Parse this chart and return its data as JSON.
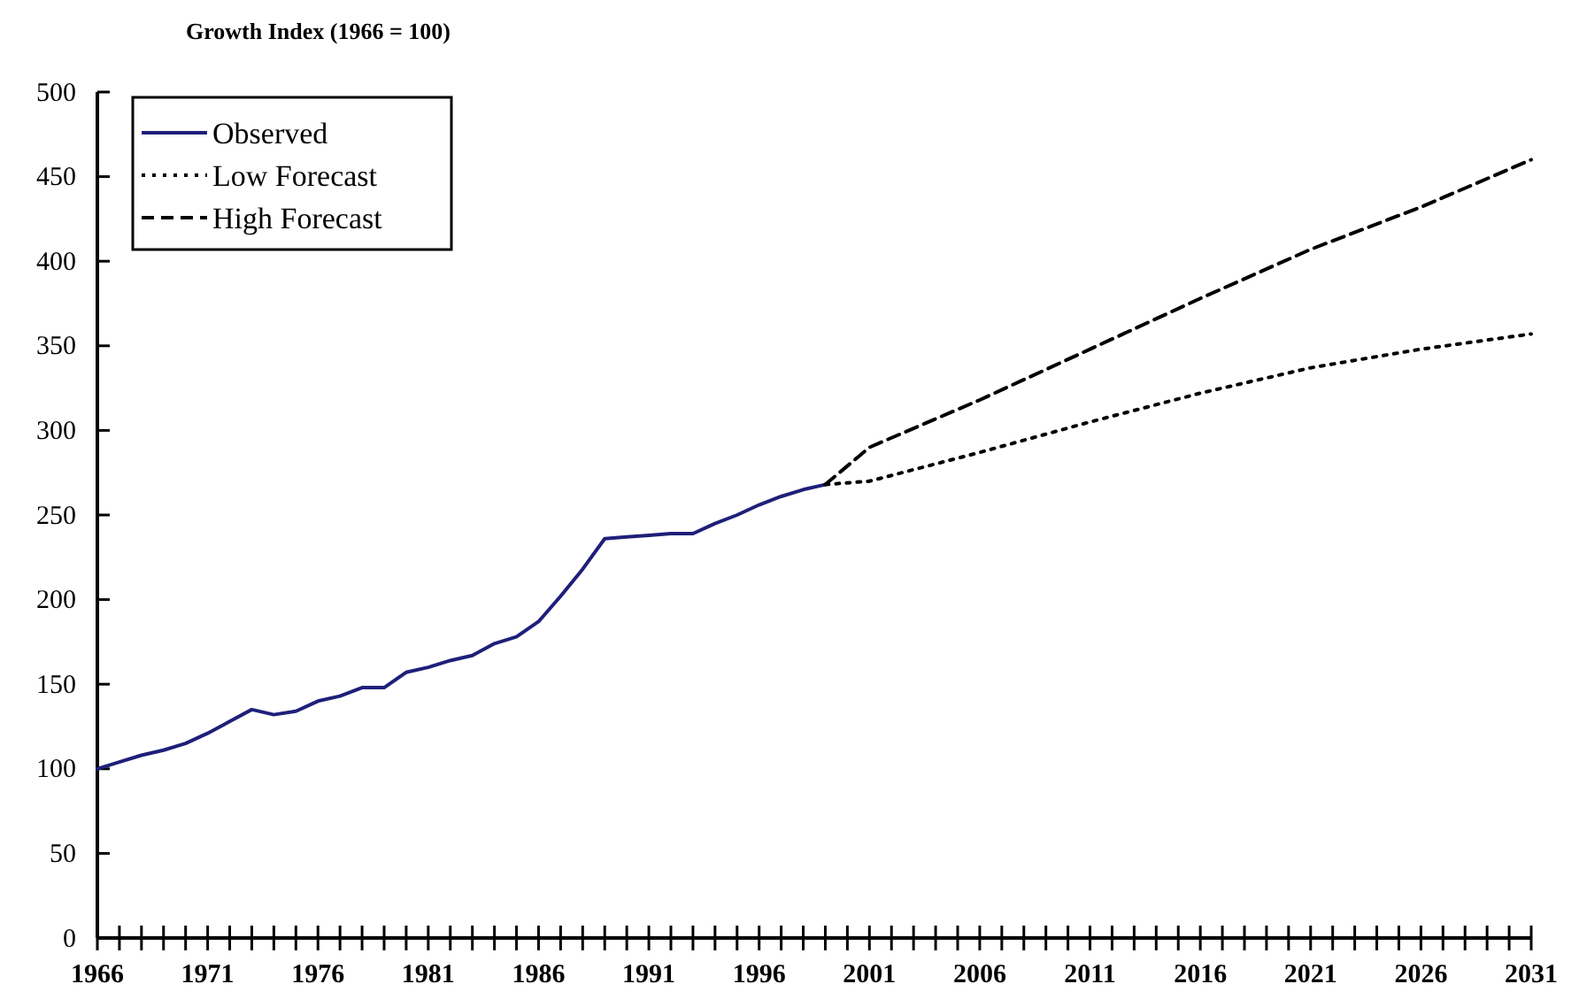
{
  "chart_data": {
    "type": "line",
    "title": "Growth Index (1966 = 100)",
    "legend": "top left",
    "grid": false,
    "xlim": [
      1966,
      2031
    ],
    "ylim": [
      0,
      500
    ],
    "yticks": [
      0,
      50,
      100,
      150,
      200,
      250,
      300,
      350,
      400,
      450,
      500
    ],
    "xticks": [
      1966,
      {
        "value": 1967,
        "label": null
      },
      {
        "value": 1968,
        "label": null
      },
      {
        "value": 1969,
        "label": null
      },
      {
        "value": 1970,
        "label": null
      },
      1971,
      {
        "value": 1972,
        "label": null
      },
      {
        "value": 1973,
        "label": null
      },
      {
        "value": 1974,
        "label": null
      },
      {
        "value": 1975,
        "label": null
      },
      1976,
      {
        "value": 1977,
        "label": null
      },
      {
        "value": 1978,
        "label": null
      },
      {
        "value": 1979,
        "label": null
      },
      {
        "value": 1980,
        "label": null
      },
      1981,
      {
        "value": 1982,
        "label": null
      },
      {
        "value": 1983,
        "label": null
      },
      {
        "value": 1984,
        "label": null
      },
      {
        "value": 1985,
        "label": null
      },
      1986,
      {
        "value": 1987,
        "label": null
      },
      {
        "value": 1988,
        "label": null
      },
      {
        "value": 1989,
        "label": null
      },
      {
        "value": 1990,
        "label": null
      },
      1991,
      {
        "value": 1992,
        "label": null
      },
      {
        "value": 1993,
        "label": null
      },
      {
        "value": 1994,
        "label": null
      },
      {
        "value": 1995,
        "label": null
      },
      1996,
      {
        "value": 1997,
        "label": null
      },
      {
        "value": 1998,
        "label": null
      },
      {
        "value": 1999,
        "label": null
      },
      {
        "value": 2000,
        "label": null
      },
      2001,
      {
        "value": 2002,
        "label": null
      },
      {
        "value": 2003,
        "label": null
      },
      {
        "value": 2004,
        "label": null
      },
      {
        "value": 2005,
        "label": null
      },
      2006,
      {
        "value": 2007,
        "label": null
      },
      {
        "value": 2008,
        "label": null
      },
      {
        "value": 2009,
        "label": null
      },
      {
        "value": 2010,
        "label": null
      },
      2011,
      {
        "value": 2012,
        "label": null
      },
      {
        "value": 2013,
        "label": null
      },
      {
        "value": 2014,
        "label": null
      },
      {
        "value": 2015,
        "label": null
      },
      2016,
      {
        "value": 2017,
        "label": null
      },
      {
        "value": 2018,
        "label": null
      },
      {
        "value": 2019,
        "label": null
      },
      {
        "value": 2020,
        "label": null
      },
      2021,
      {
        "value": 2022,
        "label": null
      },
      {
        "value": 2023,
        "label": null
      },
      {
        "value": 2024,
        "label": null
      },
      {
        "value": 2025,
        "label": null
      },
      2026,
      {
        "value": 2027,
        "label": null
      },
      {
        "value": 2028,
        "label": null
      },
      {
        "value": 2029,
        "label": null
      },
      {
        "value": 2030,
        "label": null
      },
      2031
    ],
    "series": [
      {
        "name": "Observed",
        "color": "#1f1f7a",
        "line_style": "solid",
        "x": [
          1966,
          1967,
          1968,
          1969,
          1970,
          1971,
          1972,
          1973,
          1974,
          1975,
          1976,
          1977,
          1978,
          1979,
          1980,
          1981,
          1982,
          1983,
          1984,
          1985,
          1986,
          1987,
          1988,
          1989,
          1990,
          1991,
          1992,
          1993,
          1994,
          1995,
          1996,
          1997,
          1998,
          1999
        ],
        "values": [
          100,
          104,
          108,
          111,
          115,
          121,
          128,
          135,
          132,
          134,
          140,
          143,
          148,
          148,
          157,
          160,
          164,
          167,
          174,
          178,
          187,
          202,
          218,
          236,
          237,
          238,
          239,
          239,
          245,
          250,
          256,
          261,
          265,
          268
        ]
      },
      {
        "name": "Low Forecast",
        "color": "#000000",
        "line_style": "dotted",
        "x": [
          1999,
          2001,
          2006,
          2011,
          2016,
          2021,
          2026,
          2031
        ],
        "values": [
          268,
          270,
          287,
          305,
          322,
          337,
          348,
          357
        ]
      },
      {
        "name": "High Forecast",
        "color": "#000000",
        "line_style": "dashed",
        "x": [
          1999,
          2001,
          2006,
          2011,
          2016,
          2021,
          2026,
          2031
        ],
        "values": [
          268,
          290,
          318,
          348,
          378,
          407,
          432,
          460
        ]
      }
    ]
  }
}
